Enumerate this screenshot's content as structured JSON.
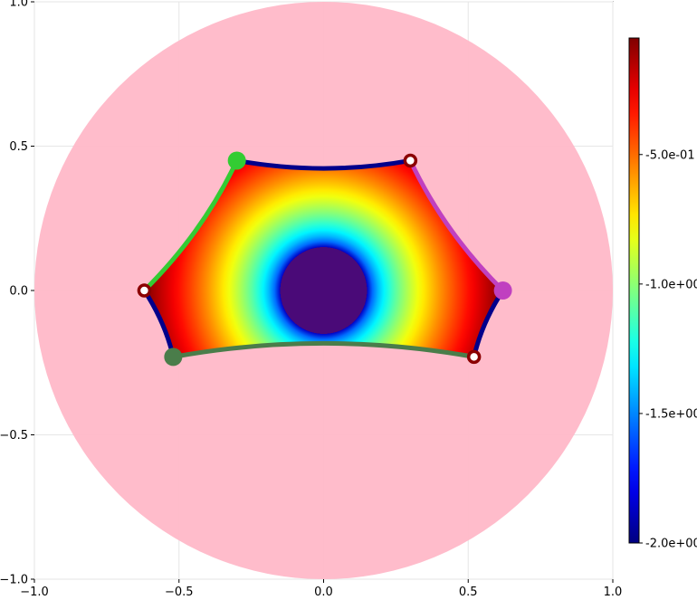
{
  "chart_data": {
    "type": "heatmap",
    "title": "",
    "xlabel": "",
    "ylabel": "",
    "xlim": [
      -1.0,
      1.0
    ],
    "ylim": [
      -1.0,
      1.0
    ],
    "grid": true,
    "x_ticks": [
      "−1.0",
      "−0.5",
      "0.0",
      "0.5",
      "1.0"
    ],
    "x_tick_values": [
      -1.0,
      -0.5,
      0.0,
      0.5,
      1.0
    ],
    "y_ticks": [
      "1.0",
      "0.5",
      "0.0",
      "−0.5",
      "−1.0"
    ],
    "y_tick_values": [
      1.0,
      0.5,
      0.0,
      -0.5,
      -1.0
    ],
    "disk": {
      "center": [
        0,
        0
      ],
      "radius": 1.0,
      "color": "#ffb8c8"
    },
    "field": {
      "center": [
        0,
        0
      ],
      "inner_plateau_radius": 0.15,
      "min": -2.0,
      "max": -0.05
    },
    "polygon_vertices": [
      [
        0.3,
        0.45
      ],
      [
        0.62,
        0.0
      ],
      [
        0.52,
        -0.23
      ],
      [
        -0.52,
        -0.23
      ],
      [
        -0.62,
        0.0
      ],
      [
        -0.3,
        0.45
      ]
    ],
    "edges": [
      {
        "from": 0,
        "to": 1,
        "color": "#c040c0"
      },
      {
        "from": 1,
        "to": 2,
        "color": "#00008b"
      },
      {
        "from": 2,
        "to": 3,
        "color": "#4a7d4a"
      },
      {
        "from": 3,
        "to": 4,
        "color": "#00008b"
      },
      {
        "from": 4,
        "to": 5,
        "color": "#33cc33"
      },
      {
        "from": 5,
        "to": 0,
        "color": "#00008b"
      }
    ],
    "points": [
      {
        "x": 0.3,
        "y": 0.45,
        "color": "#8b0000",
        "style": "ring"
      },
      {
        "x": 0.62,
        "y": 0.0,
        "color": "#c040c0",
        "style": "filled"
      },
      {
        "x": 0.52,
        "y": -0.23,
        "color": "#8b0000",
        "style": "ring"
      },
      {
        "x": -0.52,
        "y": -0.23,
        "color": "#4a7d4a",
        "style": "filled"
      },
      {
        "x": -0.62,
        "y": 0.0,
        "color": "#8b0000",
        "style": "ring"
      },
      {
        "x": -0.3,
        "y": 0.45,
        "color": "#33cc33",
        "style": "filled"
      }
    ],
    "colorbar": {
      "min": -2.0,
      "max": -0.05,
      "ticks": [
        -0.5,
        -1.0,
        -1.5,
        -2.0
      ],
      "tick_labels": [
        "-5.0e-01",
        "-1.0e+00",
        "-1.5e+00",
        "-2.0e+00"
      ]
    },
    "colormap": "jet"
  }
}
